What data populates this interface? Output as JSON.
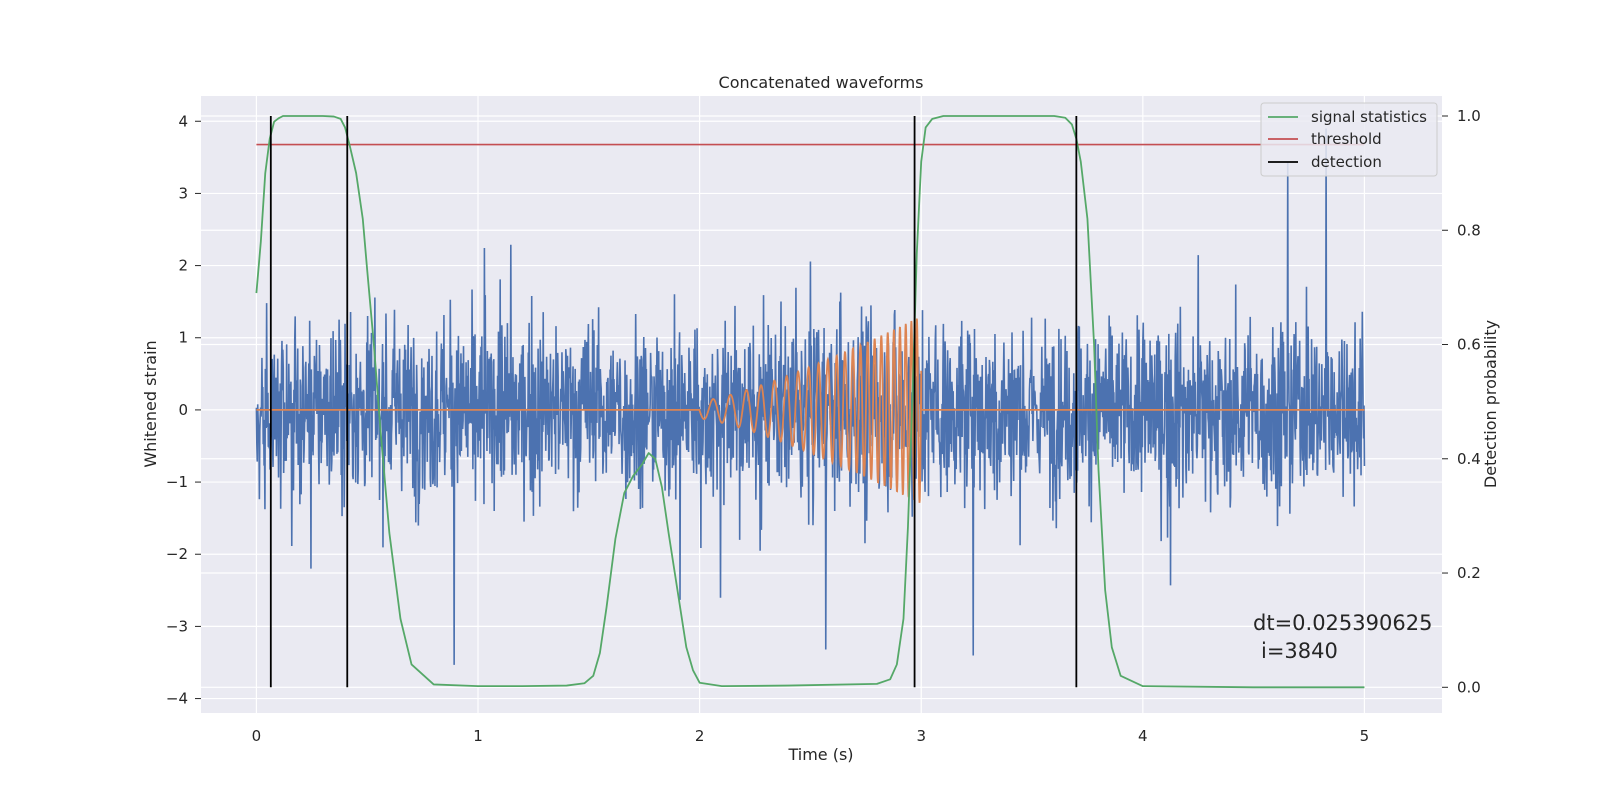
{
  "chart_data": {
    "type": "line",
    "title": "Concatenated waveforms",
    "xlabel": "Time (s)",
    "ylabel_left": "Whitened strain",
    "ylabel_right": "Detection probability",
    "xlim": [
      -0.25,
      5.35
    ],
    "ylim_left": [
      -4.2,
      4.35
    ],
    "ylim_right": [
      -0.045,
      1.035
    ],
    "xticks": [
      "0",
      "1",
      "2",
      "3",
      "4",
      "5"
    ],
    "yticks_left": [
      "4",
      "3",
      "2",
      "1",
      "0",
      "−1",
      "−2",
      "−3",
      "−4"
    ],
    "yticks_right": [
      "1.0",
      "0.8",
      "0.6",
      "0.4",
      "0.2",
      "0.0"
    ],
    "grid": true,
    "background": "#eaeaf2",
    "legend_position": "top-right",
    "series": [
      {
        "name": "",
        "axis": "left",
        "color": "#4c72b0",
        "description": "whitened strain noise, amplitude approx ±2 with spikes to ±4, t=0..5 s"
      },
      {
        "name": "",
        "axis": "left",
        "color": "#dd8452",
        "description": "injected chirp waveform, 0 outside 2.0–3.0 s",
        "chirp_segment": {
          "t_start": 2.0,
          "t_end": 3.0,
          "amp_start": 0.12,
          "amp_end": 1.3
        }
      },
      {
        "name": "signal statistics",
        "axis": "right",
        "color": "#55a868",
        "x": [
          0.0,
          0.02,
          0.04,
          0.06,
          0.08,
          0.1,
          0.12,
          0.15,
          0.2,
          0.25,
          0.3,
          0.35,
          0.38,
          0.4,
          0.42,
          0.45,
          0.48,
          0.5,
          0.53,
          0.56,
          0.6,
          0.65,
          0.7,
          0.8,
          1.0,
          1.2,
          1.4,
          1.48,
          1.52,
          1.55,
          1.58,
          1.62,
          1.66,
          1.7,
          1.74,
          1.77,
          1.8,
          1.83,
          1.86,
          1.9,
          1.94,
          1.97,
          2.0,
          2.1,
          2.4,
          2.8,
          2.86,
          2.89,
          2.92,
          2.94,
          2.96,
          2.98,
          3.0,
          3.02,
          3.05,
          3.1,
          3.3,
          3.6,
          3.65,
          3.68,
          3.7,
          3.72,
          3.75,
          3.78,
          3.8,
          3.83,
          3.86,
          3.9,
          4.0,
          4.5,
          5.0
        ],
        "y": [
          0.69,
          0.78,
          0.9,
          0.96,
          0.99,
          0.996,
          1.0,
          1.0,
          1.0,
          1.0,
          1.0,
          0.999,
          0.995,
          0.98,
          0.95,
          0.9,
          0.82,
          0.73,
          0.6,
          0.45,
          0.27,
          0.12,
          0.04,
          0.005,
          0.002,
          0.002,
          0.003,
          0.007,
          0.02,
          0.06,
          0.14,
          0.26,
          0.34,
          0.37,
          0.39,
          0.41,
          0.4,
          0.35,
          0.27,
          0.17,
          0.07,
          0.03,
          0.008,
          0.002,
          0.003,
          0.006,
          0.014,
          0.04,
          0.12,
          0.28,
          0.5,
          0.76,
          0.92,
          0.98,
          0.995,
          1.0,
          1.0,
          1.0,
          0.997,
          0.985,
          0.96,
          0.92,
          0.82,
          0.6,
          0.38,
          0.17,
          0.07,
          0.02,
          0.002,
          0.0,
          0.0
        ]
      },
      {
        "name": "threshold",
        "axis": "right",
        "color": "#c44e52",
        "x": [
          0.0,
          5.0
        ],
        "y": [
          0.95,
          0.95
        ]
      },
      {
        "name": "detection",
        "axis": "right",
        "color": "#000000",
        "vlines_x": [
          0.065,
          0.41,
          2.97,
          3.7
        ],
        "ymin": 0.0,
        "ymax": 1.0
      }
    ],
    "annotations": [
      {
        "text": "dt=0.025390625",
        "x": 4.5,
        "y_right": 0.1
      },
      {
        "text": "i=3840",
        "x": 4.53,
        "y_right": 0.05
      }
    ]
  }
}
